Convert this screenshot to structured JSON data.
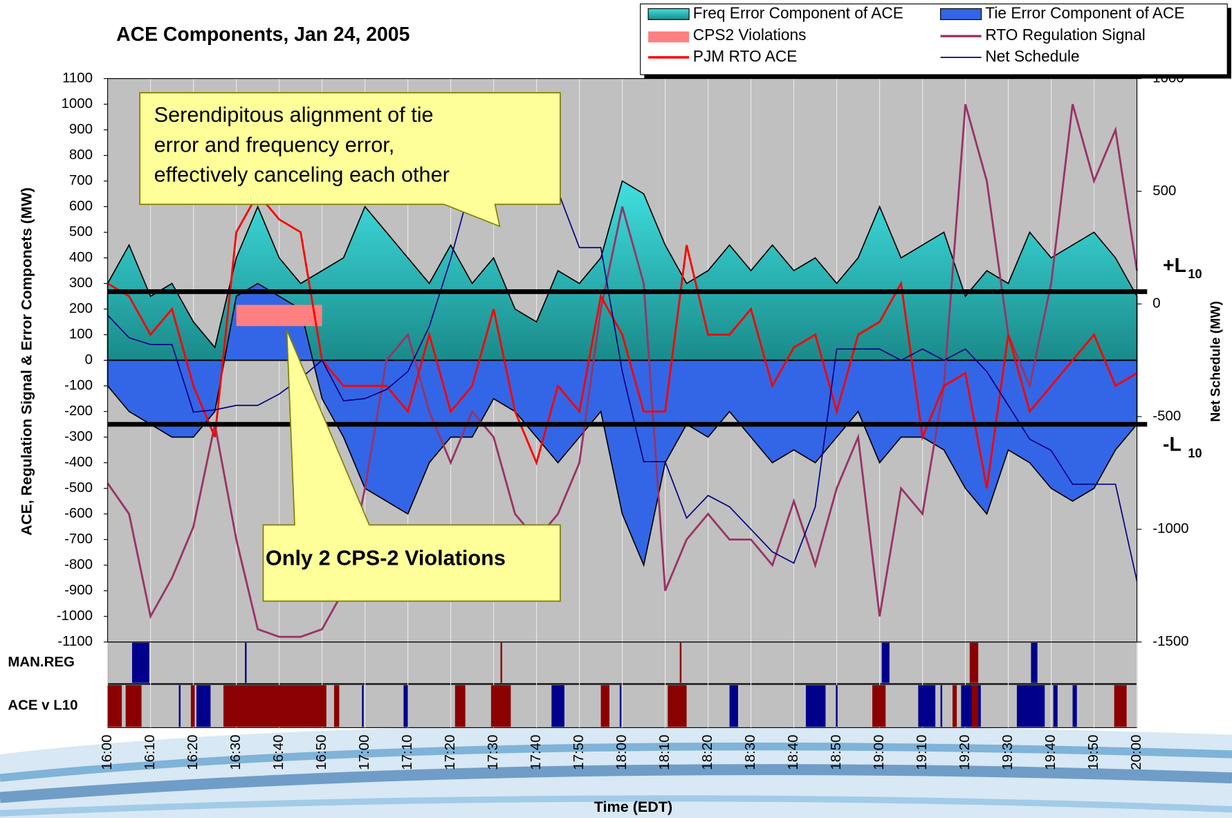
{
  "chart_data": {
    "type": "line",
    "title": "ACE Components, Jan 24, 2005",
    "x_label": "Time (EDT)",
    "y_label": "ACE, Regulation Signal & Error Componets (MW)",
    "y2_label": "Net Schedule (MW)",
    "xlim": [
      0,
      240
    ],
    "xticks": [
      {
        "value": 0,
        "label": "16:00"
      },
      {
        "value": 10,
        "label": "16:10"
      },
      {
        "value": 20,
        "label": "16:20"
      },
      {
        "value": 30,
        "label": "16:30"
      },
      {
        "value": 40,
        "label": "16:40"
      },
      {
        "value": 50,
        "label": "16:50"
      },
      {
        "value": 60,
        "label": "17:00"
      },
      {
        "value": 70,
        "label": "17:10"
      },
      {
        "value": 80,
        "label": "17:20"
      },
      {
        "value": 90,
        "label": "17:30"
      },
      {
        "value": 100,
        "label": "17:40"
      },
      {
        "value": 110,
        "label": "17:50"
      },
      {
        "value": 120,
        "label": "18:00"
      },
      {
        "value": 130,
        "label": "18:10"
      },
      {
        "value": 140,
        "label": "18:20"
      },
      {
        "value": 150,
        "label": "18:30"
      },
      {
        "value": 160,
        "label": "18:40"
      },
      {
        "value": 170,
        "label": "18:50"
      },
      {
        "value": 180,
        "label": "19:00"
      },
      {
        "value": 190,
        "label": "19:10"
      },
      {
        "value": 200,
        "label": "19:20"
      },
      {
        "value": 210,
        "label": "19:30"
      },
      {
        "value": 220,
        "label": "19:40"
      },
      {
        "value": 230,
        "label": "19:50"
      },
      {
        "value": 240,
        "label": "20:00"
      }
    ],
    "ylim": [
      -1100,
      1100
    ],
    "yticks": [
      -1100,
      -1000,
      -900,
      -800,
      -700,
      -600,
      -500,
      -400,
      -300,
      -200,
      -100,
      0,
      100,
      200,
      300,
      400,
      500,
      600,
      700,
      800,
      900,
      1000,
      1100
    ],
    "y2lim": [
      -1500,
      1000
    ],
    "y2ticks": [
      -1500,
      -1000,
      -500,
      0,
      500,
      1000
    ],
    "x": [
      0,
      5,
      10,
      15,
      20,
      25,
      30,
      35,
      40,
      45,
      50,
      55,
      60,
      65,
      70,
      75,
      80,
      85,
      90,
      95,
      100,
      105,
      110,
      115,
      120,
      125,
      130,
      135,
      140,
      145,
      150,
      155,
      160,
      165,
      170,
      175,
      180,
      185,
      190,
      195,
      200,
      205,
      210,
      215,
      220,
      225,
      230,
      235,
      240
    ],
    "series": [
      {
        "name": "Freq Error Component of ACE",
        "kind": "area",
        "color": "#33cccc",
        "values": [
          300,
          450,
          250,
          300,
          150,
          50,
          400,
          600,
          400,
          300,
          350,
          400,
          600,
          500,
          400,
          300,
          450,
          300,
          400,
          200,
          150,
          350,
          300,
          400,
          700,
          650,
          450,
          300,
          350,
          450,
          350,
          450,
          350,
          400,
          300,
          400,
          600,
          400,
          450,
          500,
          250,
          350,
          300,
          500,
          400,
          450,
          500,
          400,
          250
        ]
      },
      {
        "name": "Tie Error Component of ACE",
        "kind": "area",
        "color": "#3366e6",
        "values": [
          -100,
          -200,
          -250,
          -300,
          -300,
          -200,
          250,
          300,
          250,
          200,
          -150,
          -300,
          -500,
          -550,
          -600,
          -400,
          -300,
          -300,
          -150,
          -200,
          -300,
          -400,
          -300,
          -200,
          -600,
          -800,
          -400,
          -250,
          -300,
          -200,
          -300,
          -400,
          -350,
          -400,
          -300,
          -200,
          -400,
          -300,
          -300,
          -350,
          -500,
          -600,
          -350,
          -400,
          -500,
          -550,
          -500,
          -350,
          -250
        ]
      },
      {
        "name": "RTO Regulation Signal",
        "kind": "line",
        "color": "#993366",
        "values": [
          -480,
          -600,
          -1000,
          -850,
          -650,
          -250,
          -700,
          -1050,
          -1080,
          -1080,
          -1050,
          -900,
          -500,
          0,
          100,
          -200,
          -400,
          -200,
          -300,
          -600,
          -700,
          -600,
          -400,
          200,
          600,
          300,
          -900,
          -700,
          -600,
          -700,
          -700,
          -800,
          -550,
          -800,
          -500,
          -300,
          -1000,
          -500,
          -600,
          -100,
          1000,
          700,
          100,
          -100,
          300,
          1000,
          700,
          900,
          350
        ]
      },
      {
        "name": "PJM RTO ACE",
        "kind": "line",
        "color": "#ff0000",
        "values": [
          300,
          250,
          100,
          200,
          -100,
          -300,
          500,
          650,
          550,
          500,
          0,
          -100,
          -100,
          -100,
          -200,
          100,
          -200,
          -100,
          200,
          -200,
          -400,
          -100,
          -200,
          250,
          100,
          -200,
          -200,
          450,
          100,
          100,
          200,
          -100,
          50,
          100,
          -200,
          100,
          150,
          300,
          -300,
          -100,
          -50,
          -500,
          100,
          -200,
          -100,
          0,
          100,
          -100,
          -50
        ]
      },
      {
        "name": "Net Schedule",
        "kind": "line",
        "axis": "y2",
        "color": "#000080",
        "values": [
          -50,
          -150,
          -180,
          -180,
          -480,
          -470,
          -450,
          -450,
          -400,
          -330,
          -250,
          -430,
          -420,
          -380,
          -300,
          -100,
          200,
          550,
          800,
          800,
          650,
          500,
          250,
          250,
          -300,
          -700,
          -700,
          -950,
          -850,
          -900,
          -1000,
          -1100,
          -1150,
          -900,
          -200,
          -200,
          -200,
          -250,
          -200,
          -250,
          -200,
          -300,
          -450,
          -600,
          -650,
          -800,
          -800,
          -800,
          -1230
        ]
      }
    ],
    "cps2": {
      "name": "CPS2 Violations",
      "color": "#ff8080",
      "intervals": [
        [
          30,
          50
        ]
      ]
    },
    "l10": [
      {
        "value": 268,
        "label": "+L",
        "subscript": "10"
      },
      {
        "value": -250,
        "label": "-L",
        "subscript": "10"
      }
    ],
    "bands": [
      {
        "label": "MAN.REG",
        "intervals": [
          {
            "start": 5.7,
            "end": 9.7,
            "color": "#00008b"
          },
          {
            "start": 32,
            "end": 32.4,
            "color": "#00008b"
          },
          {
            "start": 91.6,
            "end": 92,
            "color": "#8b0000"
          },
          {
            "start": 133.4,
            "end": 133.8,
            "color": "#8b0000"
          },
          {
            "start": 180.5,
            "end": 182.3,
            "color": "#00008b"
          },
          {
            "start": 201,
            "end": 203,
            "color": "#8b0000"
          },
          {
            "start": 215.3,
            "end": 216.8,
            "color": "#00008b"
          }
        ]
      },
      {
        "label": "ACE v L10",
        "intervals": [
          {
            "start": 0,
            "end": 3.3,
            "color": "#8b0000"
          },
          {
            "start": 4.2,
            "end": 7.9,
            "color": "#8b0000"
          },
          {
            "start": 16.6,
            "end": 17,
            "color": "#00008b"
          },
          {
            "start": 19.4,
            "end": 20.3,
            "color": "#8b0000"
          },
          {
            "start": 20.7,
            "end": 24,
            "color": "#00008b"
          },
          {
            "start": 27,
            "end": 51,
            "color": "#8b0000"
          },
          {
            "start": 52.8,
            "end": 54,
            "color": "#8b0000"
          },
          {
            "start": 59.3,
            "end": 59.7,
            "color": "#00008b"
          },
          {
            "start": 69,
            "end": 70,
            "color": "#00008b"
          },
          {
            "start": 81,
            "end": 83.4,
            "color": "#8b0000"
          },
          {
            "start": 89.4,
            "end": 94,
            "color": "#8b0000"
          },
          {
            "start": 103.5,
            "end": 106.5,
            "color": "#00008b"
          },
          {
            "start": 115,
            "end": 117,
            "color": "#8b0000"
          },
          {
            "start": 119.4,
            "end": 119.8,
            "color": "#00008b"
          },
          {
            "start": 130.6,
            "end": 135,
            "color": "#8b0000"
          },
          {
            "start": 145,
            "end": 147,
            "color": "#00008b"
          },
          {
            "start": 162.8,
            "end": 167.4,
            "color": "#00008b"
          },
          {
            "start": 169.8,
            "end": 170.2,
            "color": "#00008b"
          },
          {
            "start": 178.3,
            "end": 181.4,
            "color": "#8b0000"
          },
          {
            "start": 189,
            "end": 193,
            "color": "#00008b"
          },
          {
            "start": 194.2,
            "end": 194.6,
            "color": "#00008b"
          },
          {
            "start": 197,
            "end": 198,
            "color": "#8b0000"
          },
          {
            "start": 199,
            "end": 203.6,
            "color": "#00008b"
          },
          {
            "start": 201.5,
            "end": 203,
            "color": "#8b0000"
          },
          {
            "start": 212,
            "end": 218.5,
            "color": "#00008b"
          },
          {
            "start": 220.5,
            "end": 221.5,
            "color": "#00008b"
          },
          {
            "start": 225,
            "end": 226,
            "color": "#00008b"
          },
          {
            "start": 234.7,
            "end": 237.6,
            "color": "#8b0000"
          }
        ]
      }
    ],
    "annotations": [
      {
        "lines": [
          "Serendipitous alignment of tie",
          "error and frequency error,",
          "effectively canceling each other"
        ]
      },
      {
        "lines": [
          "Only 2 CPS-2 Violations"
        ]
      }
    ]
  }
}
